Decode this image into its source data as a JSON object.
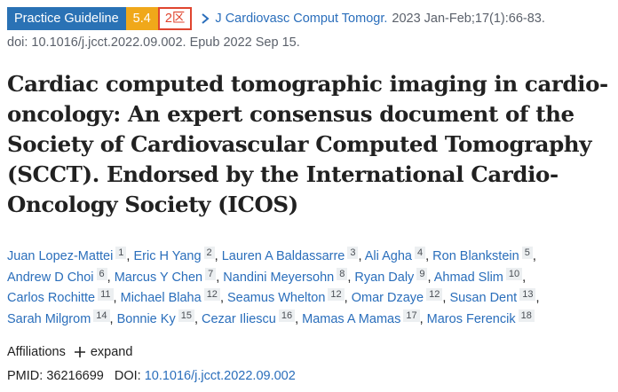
{
  "header": {
    "publication_type": "Practice Guideline",
    "impact_factor": "5.4",
    "zone": "2区",
    "journal": "J Cardiovasc Comput Tomogr.",
    "citation": "2023 Jan-Feb;17(1):66-83.",
    "doi_line": "doi: 10.1016/j.jcct.2022.09.002. Epub 2022 Sep 15."
  },
  "title": "Cardiac computed tomographic imaging in cardio-oncology: An expert consensus document of the Society of Cardiovascular Computed Tomography (SCCT). Endorsed by the International Cardio-Oncology Society (ICOS)",
  "author_separator": ",",
  "authors": [
    {
      "name": "Juan Lopez-Mattei",
      "affiliation": "1"
    },
    {
      "name": "Eric H Yang",
      "affiliation": "2"
    },
    {
      "name": "Lauren A Baldassarre",
      "affiliation": "3"
    },
    {
      "name": "Ali Agha",
      "affiliation": "4"
    },
    {
      "name": "Ron Blankstein",
      "affiliation": "5"
    },
    {
      "name": "Andrew D Choi",
      "affiliation": "6"
    },
    {
      "name": "Marcus Y Chen",
      "affiliation": "7"
    },
    {
      "name": "Nandini Meyersohn",
      "affiliation": "8"
    },
    {
      "name": "Ryan Daly",
      "affiliation": "9"
    },
    {
      "name": "Ahmad Slim",
      "affiliation": "10"
    },
    {
      "name": "Carlos Rochitte",
      "affiliation": "11"
    },
    {
      "name": "Michael Blaha",
      "affiliation": "12"
    },
    {
      "name": "Seamus Whelton",
      "affiliation": "12"
    },
    {
      "name": "Omar Dzaye",
      "affiliation": "12"
    },
    {
      "name": "Susan Dent",
      "affiliation": "13"
    },
    {
      "name": "Sarah Milgrom",
      "affiliation": "14"
    },
    {
      "name": "Bonnie Ky",
      "affiliation": "15"
    },
    {
      "name": "Cezar Iliescu",
      "affiliation": "16"
    },
    {
      "name": "Mamas A Mamas",
      "affiliation": "17"
    },
    {
      "name": "Maros Ferencik",
      "affiliation": "18"
    }
  ],
  "affiliations": {
    "label": "Affiliations",
    "expand": "expand"
  },
  "identifiers": {
    "pmid_label": "PMID:",
    "pmid": "36216699",
    "doi_label": "DOI:",
    "doi": "10.1016/j.jcct.2022.09.002"
  }
}
